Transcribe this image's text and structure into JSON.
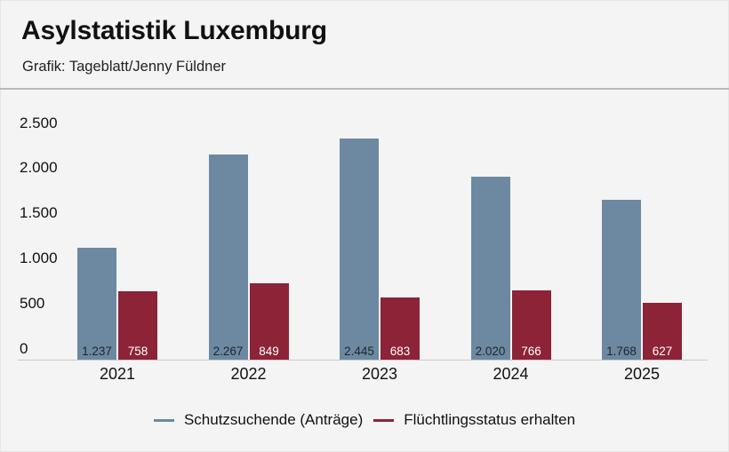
{
  "header": {
    "title": "Asylstatistik Luxemburg",
    "subtitle": "Grafik: Tageblatt/Jenny Füldner"
  },
  "colors": {
    "series1": "#6c89a1",
    "series2": "#8c2337",
    "background": "#f4f4f4"
  },
  "chart_data": {
    "type": "bar",
    "title": "Asylstatistik Luxemburg",
    "subtitle": "Grafik: Tageblatt/Jenny Füldner",
    "xlabel": "",
    "ylabel": "",
    "categories": [
      "2021",
      "2022",
      "2023",
      "2024",
      "2025"
    ],
    "series": [
      {
        "name": "Schutzsuchende (Anträge)",
        "color": "#6c89a1",
        "values": [
          1237,
          2267,
          2445,
          2020,
          1768
        ],
        "labels": [
          "1.237",
          "2.267",
          "2.445",
          "2.020",
          "1.768"
        ]
      },
      {
        "name": "Flüchtlingsstatus erhalten",
        "color": "#8c2337",
        "values": [
          758,
          849,
          683,
          766,
          627
        ],
        "labels": [
          "758",
          "849",
          "683",
          "766",
          "627"
        ]
      }
    ],
    "yticks": [
      "0",
      "500",
      "1.000",
      "1.500",
      "2.000",
      "2.500"
    ],
    "ylim": [
      0,
      2500
    ],
    "grid": false,
    "legend_position": "bottom"
  },
  "legend": [
    {
      "label": "Schutzsuchende (Anträge)"
    },
    {
      "label": "Flüchtlingsstatus erhalten"
    }
  ]
}
